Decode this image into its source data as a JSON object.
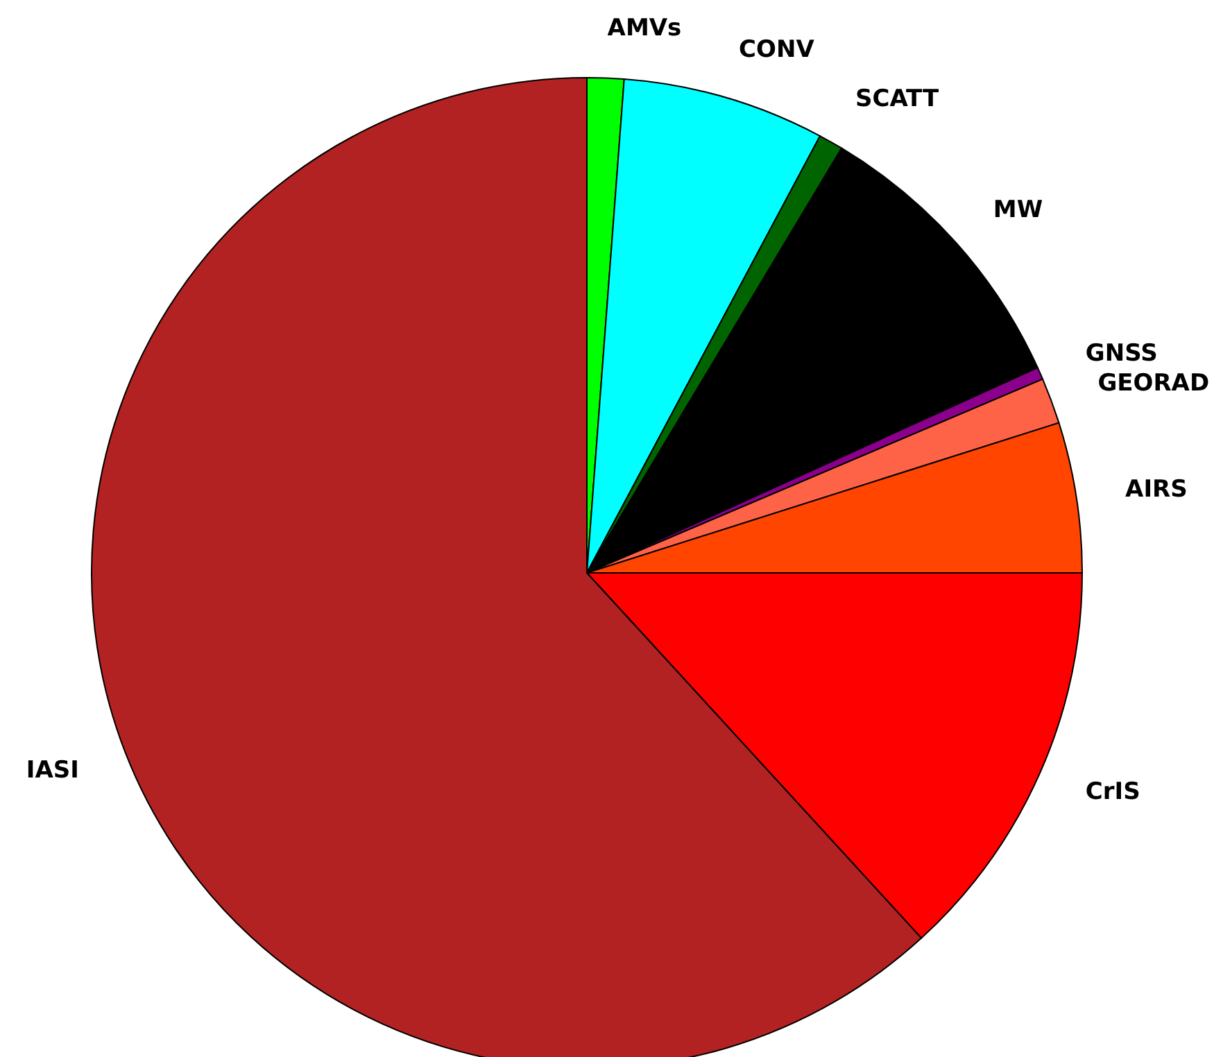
{
  "chart_data": {
    "type": "pie",
    "categories": [
      "AMVs",
      "CONV",
      "SCATT",
      "MW",
      "GNSS",
      "GEORAD",
      "AIRS",
      "CrIS",
      "IASI"
    ],
    "values": [
      1.2,
      6.6,
      0.8,
      9.6,
      0.4,
      1.5,
      4.9,
      13.2,
      61.8
    ],
    "colors": [
      "#00ff00",
      "#00ffff",
      "#006400",
      "#000000",
      "#8b008b",
      "#ff6347",
      "#ff4500",
      "#ff0000",
      "#b22222"
    ]
  }
}
